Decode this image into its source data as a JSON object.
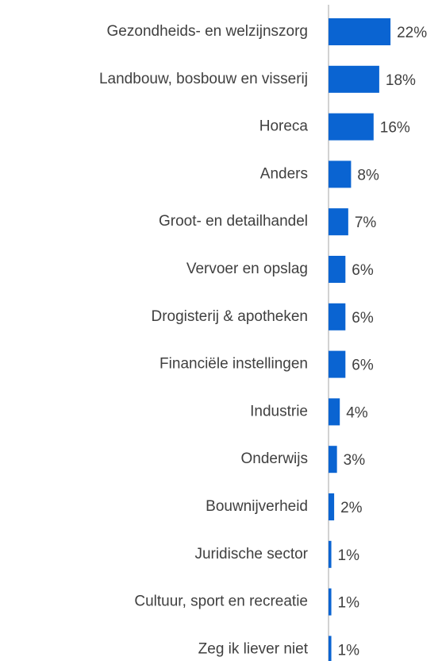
{
  "chart_data": {
    "type": "bar",
    "orientation": "horizontal",
    "categories": [
      "Gezondheids- en welzijnszorg",
      "Landbouw, bosbouw en visserij",
      "Horeca",
      "Anders",
      "Groot- en detailhandel",
      "Vervoer en opslag",
      "Drogisterij & apotheken",
      "Financiële instellingen",
      "Industrie",
      "Onderwijs",
      "Bouwnijverheid",
      "Juridische sector",
      "Cultuur, sport en recreatie",
      "Zeg ik liever niet"
    ],
    "values": [
      22,
      18,
      16,
      8,
      7,
      6,
      6,
      6,
      4,
      3,
      2,
      1,
      1,
      1
    ],
    "value_labels": [
      "22%",
      "18%",
      "16%",
      "8%",
      "7%",
      "6%",
      "6%",
      "6%",
      "4%",
      "3%",
      "2%",
      "1%",
      "1%",
      "1%"
    ],
    "color": "#0a64d2",
    "xlim": [
      0,
      40
    ]
  }
}
